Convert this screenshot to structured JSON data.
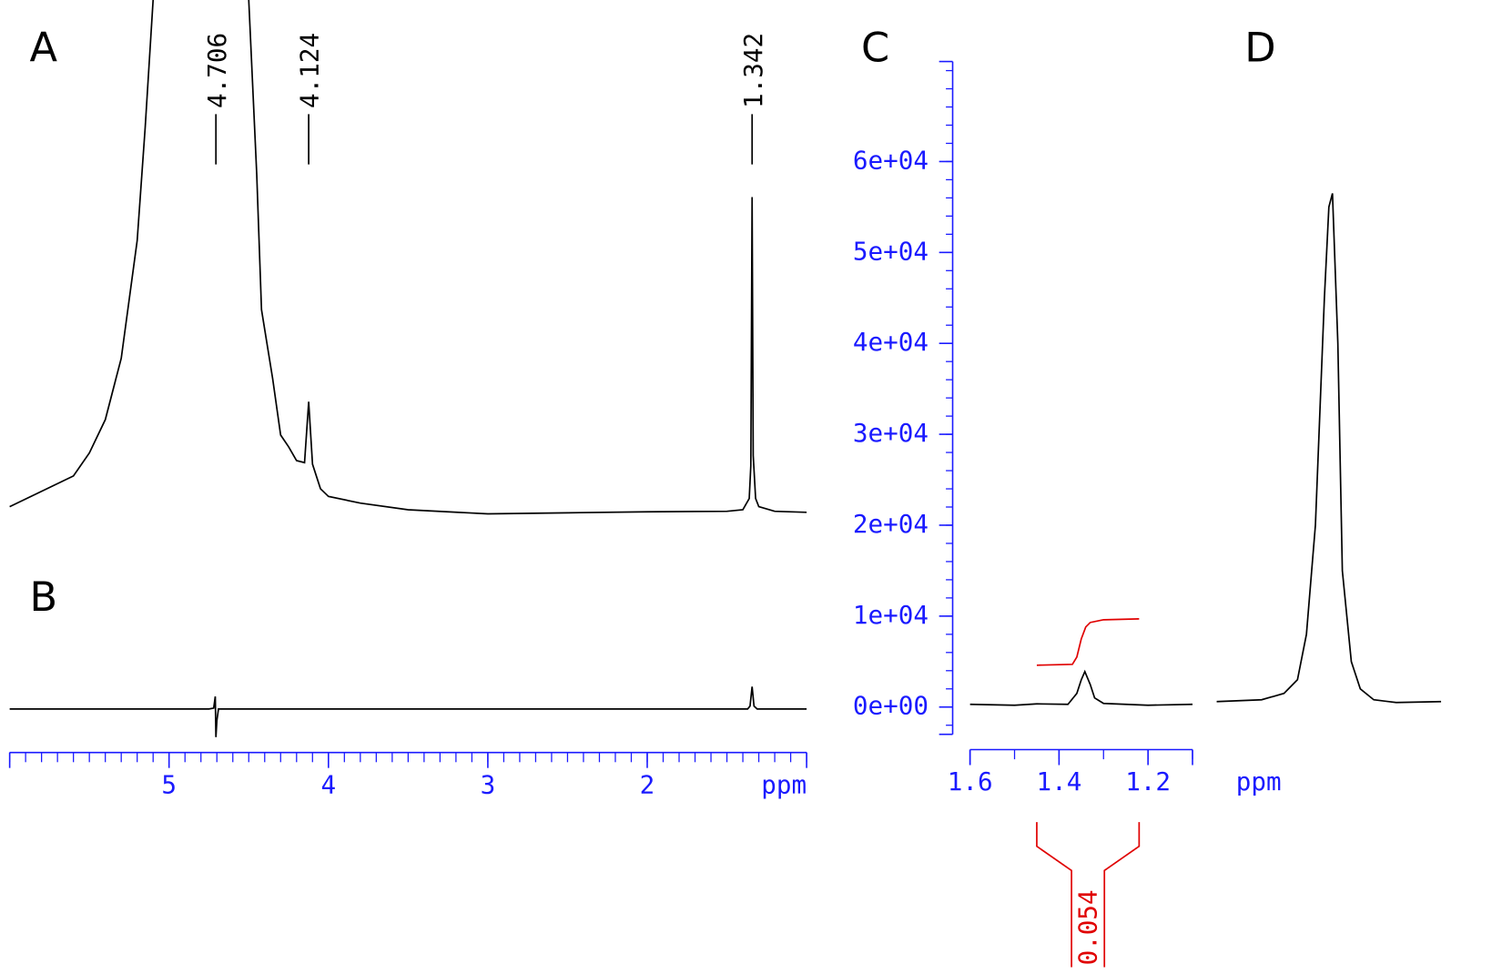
{
  "chart_data": [
    {
      "type": "line",
      "label": "A",
      "color": "#000000",
      "x": [
        6.0,
        5.8,
        5.6,
        5.5,
        5.4,
        5.3,
        5.2,
        5.15,
        5.1,
        4.8,
        4.5,
        4.45,
        4.42,
        4.35,
        4.3,
        4.25,
        4.2,
        4.15,
        4.124,
        4.1,
        4.05,
        4.0,
        3.8,
        3.5,
        3.0,
        2.5,
        2.0,
        1.5,
        1.4,
        1.36,
        1.35,
        1.342,
        1.335,
        1.32,
        1.3,
        1.2,
        1.0
      ],
      "values": [
        1,
        4,
        7,
        11.5,
        18,
        30,
        53,
        75,
        100,
        160,
        100,
        66,
        39.5,
        26,
        15,
        12.7,
        10,
        9.6,
        21.5,
        9.3,
        4.5,
        3,
        1.7,
        0.4,
        -0.4,
        -0.2,
        0,
        0.1,
        0.4,
        2.6,
        9,
        61.5,
        11,
        2.6,
        1,
        0.1,
        -0.1
      ],
      "xlim": [
        6.0,
        1.0
      ],
      "ylim": [
        -3,
        100
      ],
      "xticks": [
        5,
        4,
        3,
        2
      ],
      "xminor": 0.1,
      "xlabel": "ppm",
      "peaks": [
        4.706,
        4.124,
        1.342
      ],
      "axis_color": "#1a1aff"
    },
    {
      "type": "line",
      "label": "B",
      "color": "#000000",
      "x": [
        6.0,
        4.75,
        4.72,
        4.71,
        4.706,
        4.7,
        4.69,
        1.37,
        1.355,
        1.342,
        1.33,
        1.31,
        1.0
      ],
      "values": [
        0,
        0,
        0.3,
        4.3,
        -9.7,
        -4,
        0,
        0,
        1,
        7.7,
        1,
        0,
        0
      ],
      "xlim": [
        6.0,
        1.0
      ],
      "ylim": [
        -10,
        10
      ]
    },
    {
      "type": "line",
      "label": "C",
      "color": "#000000",
      "x": [
        1.6,
        1.5,
        1.45,
        1.38,
        1.36,
        1.35,
        1.342,
        1.33,
        1.32,
        1.3,
        1.2,
        1.1
      ],
      "values": [
        300,
        200,
        350,
        300,
        1500,
        3000,
        3900,
        2500,
        1000,
        400,
        200,
        300
      ],
      "xlim": [
        1.6,
        1.1
      ],
      "ylim": [
        -3000,
        71000
      ],
      "xticks": [
        1.6,
        1.4,
        1.2
      ],
      "xminor": 0.1,
      "yminor": 2000,
      "xlabel": "ppm",
      "yticks": [
        {
          "value": 0,
          "label": "0e+00"
        },
        {
          "value": 10000,
          "label": "1e+04"
        },
        {
          "value": 20000,
          "label": "2e+04"
        },
        {
          "value": 30000,
          "label": "3e+04"
        },
        {
          "value": 40000,
          "label": "4e+04"
        },
        {
          "value": 50000,
          "label": "5e+04"
        },
        {
          "value": 60000,
          "label": "6e+04"
        }
      ],
      "axis_color": "#1a1aff",
      "integral": {
        "x": [
          1.45,
          1.37,
          1.36,
          1.35,
          1.34,
          1.33,
          1.3,
          1.22
        ],
        "values": [
          4600,
          4700,
          5500,
          7500,
          8800,
          9300,
          9600,
          9700
        ],
        "label": 0.054,
        "color": "#e00000"
      }
    },
    {
      "type": "line",
      "label": "D",
      "color": "#000000",
      "x": [
        1.6,
        1.5,
        1.45,
        1.42,
        1.4,
        1.38,
        1.36,
        1.35,
        1.342,
        1.33,
        1.32,
        1.3,
        1.28,
        1.25,
        1.2,
        1.1
      ],
      "values": [
        600,
        800,
        1500,
        3000,
        8000,
        20000,
        45000,
        55000,
        56500,
        40000,
        15000,
        5000,
        2000,
        800,
        500,
        600
      ],
      "xlim": [
        1.6,
        1.1
      ],
      "ylim": [
        -3000,
        71000
      ]
    }
  ]
}
